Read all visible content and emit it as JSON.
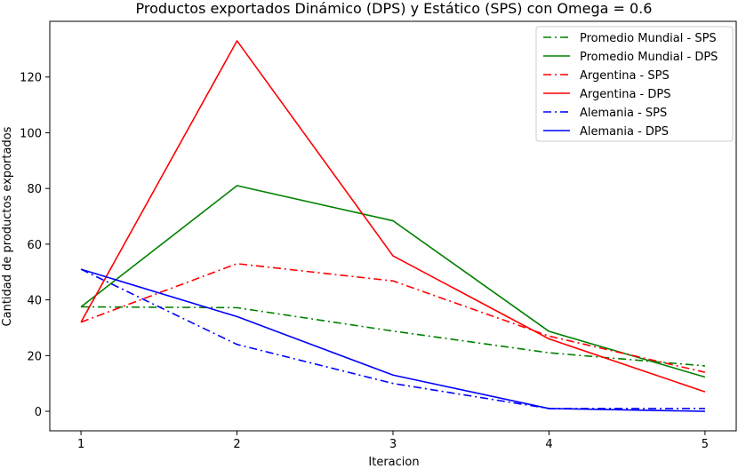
{
  "chart_data": {
    "type": "line",
    "title": "Productos exportados Dinámico (DPS) y Estático (SPS) con Omega = 0.6",
    "xlabel": "Iteracion",
    "ylabel": "Cantidad de productos exportados",
    "x": [
      1,
      2,
      3,
      4,
      5
    ],
    "xticks": [
      1,
      2,
      3,
      4,
      5
    ],
    "yticks": [
      0,
      20,
      40,
      60,
      80,
      100,
      120
    ],
    "xlim": [
      0.8,
      5.2
    ],
    "ylim": [
      -7,
      140
    ],
    "grid": false,
    "legend_position": "top-right",
    "series": [
      {
        "name": "Promedio Mundial - SPS",
        "color": "#008000",
        "dash": "dashdot",
        "values": [
          37.5,
          37.2,
          28.8,
          21.0,
          16.3
        ]
      },
      {
        "name": "Promedio Mundial - DPS",
        "color": "#008000",
        "dash": "solid",
        "values": [
          37.5,
          81.0,
          68.4,
          28.7,
          12.3
        ]
      },
      {
        "name": "Argentina - SPS",
        "color": "#ff0000",
        "dash": "dashdot",
        "values": [
          32.0,
          53.0,
          46.8,
          27.0,
          14.0
        ]
      },
      {
        "name": "Argentina - DPS",
        "color": "#ff0000",
        "dash": "solid",
        "values": [
          32.0,
          133.0,
          55.8,
          26.0,
          7.0
        ]
      },
      {
        "name": "Alemania - SPS",
        "color": "#0000ff",
        "dash": "dashdot",
        "values": [
          51.0,
          24.0,
          10.0,
          1.0,
          1.0
        ]
      },
      {
        "name": "Alemania - DPS",
        "color": "#0000ff",
        "dash": "solid",
        "values": [
          51.0,
          34.0,
          13.0,
          1.0,
          0.0
        ]
      }
    ]
  }
}
